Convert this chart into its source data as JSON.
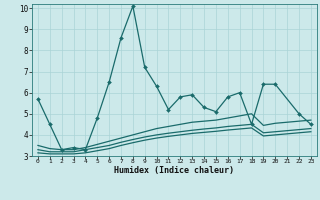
{
  "xlabel": "Humidex (Indice chaleur)",
  "xlim": [
    -0.5,
    23.5
  ],
  "ylim": [
    3,
    10.2
  ],
  "xticks": [
    0,
    1,
    2,
    3,
    4,
    5,
    6,
    7,
    8,
    9,
    10,
    11,
    12,
    13,
    14,
    15,
    16,
    17,
    18,
    19,
    20,
    21,
    22,
    23
  ],
  "yticks": [
    3,
    4,
    5,
    6,
    7,
    8,
    9,
    10
  ],
  "bg_color": "#cce9ea",
  "grid_color": "#aad4d6",
  "line_color": "#1a6b6b",
  "line1_x": [
    0,
    1,
    2,
    3,
    4,
    5,
    6,
    7,
    8,
    9,
    10,
    11,
    12,
    13,
    14,
    15,
    16,
    17,
    18,
    19,
    20,
    22,
    23
  ],
  "line1_y": [
    5.7,
    4.5,
    3.3,
    3.4,
    3.3,
    4.8,
    6.5,
    8.6,
    10.1,
    7.2,
    6.3,
    5.2,
    5.8,
    5.9,
    5.3,
    5.1,
    5.8,
    6.0,
    4.5,
    6.4,
    6.4,
    5.0,
    4.5
  ],
  "line2_x": [
    0,
    1,
    2,
    3,
    4,
    5,
    6,
    7,
    8,
    9,
    10,
    11,
    12,
    13,
    14,
    15,
    16,
    17,
    18,
    19,
    20,
    21,
    22,
    23
  ],
  "line2_y": [
    3.5,
    3.35,
    3.3,
    3.3,
    3.4,
    3.55,
    3.7,
    3.85,
    4.0,
    4.15,
    4.3,
    4.4,
    4.5,
    4.6,
    4.65,
    4.7,
    4.8,
    4.9,
    5.0,
    4.45,
    4.55,
    4.6,
    4.65,
    4.7
  ],
  "line3_x": [
    0,
    1,
    2,
    3,
    4,
    5,
    6,
    7,
    8,
    9,
    10,
    11,
    12,
    13,
    14,
    15,
    16,
    17,
    18,
    19,
    20,
    21,
    22,
    23
  ],
  "line3_y": [
    3.3,
    3.2,
    3.2,
    3.2,
    3.3,
    3.4,
    3.5,
    3.65,
    3.78,
    3.9,
    4.0,
    4.08,
    4.15,
    4.22,
    4.28,
    4.33,
    4.4,
    4.45,
    4.5,
    4.1,
    4.15,
    4.2,
    4.25,
    4.3
  ],
  "line4_x": [
    0,
    1,
    2,
    3,
    4,
    5,
    6,
    7,
    8,
    9,
    10,
    11,
    12,
    13,
    14,
    15,
    16,
    17,
    18,
    19,
    20,
    21,
    22,
    23
  ],
  "line4_y": [
    3.15,
    3.1,
    3.1,
    3.1,
    3.15,
    3.25,
    3.35,
    3.5,
    3.63,
    3.75,
    3.85,
    3.93,
    4.0,
    4.07,
    4.12,
    4.17,
    4.23,
    4.28,
    4.33,
    3.95,
    4.0,
    4.05,
    4.1,
    4.15
  ]
}
